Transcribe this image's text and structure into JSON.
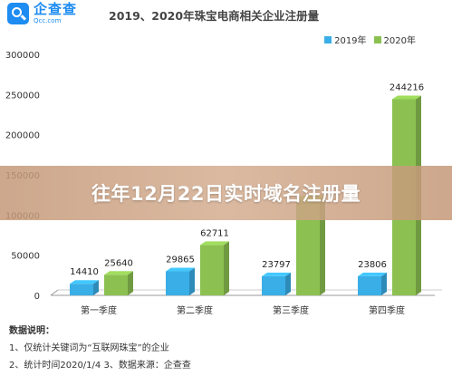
{
  "logo": {
    "cn": "企查查",
    "en": "Qcc.com"
  },
  "banner": {
    "text": "往年12月22日实时域名注册量"
  },
  "notes": {
    "title": "数据说明：",
    "line1": "1、仅统计关键词为“互联网珠宝”的企业",
    "line2": "2、统计时间2020/1/4   3、数据来源：企查查"
  },
  "colors": {
    "series2019": "#3aaee6",
    "series2020": "#8cc152",
    "axis": "#999999",
    "grid": "#e6e6e6"
  },
  "chart_data": {
    "type": "bar",
    "title": "2019、2020年珠宝电商相关企业注册量",
    "xlabel": "",
    "ylabel": "",
    "categories": [
      "第一季度",
      "第二季度",
      "第三季度",
      "第四季度"
    ],
    "series": [
      {
        "name": "2019年",
        "values": [
          14410,
          29865,
          23797,
          23806
        ],
        "labels": [
          "14410",
          "29865",
          "23797",
          "23806"
        ]
      },
      {
        "name": "2020年",
        "values": [
          25640,
          62711,
          120000,
          244216
        ],
        "labels": [
          "25640",
          "62711",
          "",
          "244216"
        ]
      }
    ],
    "ylim": [
      0,
      300000
    ],
    "yticks": [
      0,
      50000,
      100000,
      150000,
      200000,
      250000,
      300000
    ],
    "ytick_labels": [
      "0",
      "50000",
      "100000",
      "150000",
      "200000",
      "250000",
      "300000"
    ],
    "grid": false,
    "legend_position": "top-right"
  }
}
